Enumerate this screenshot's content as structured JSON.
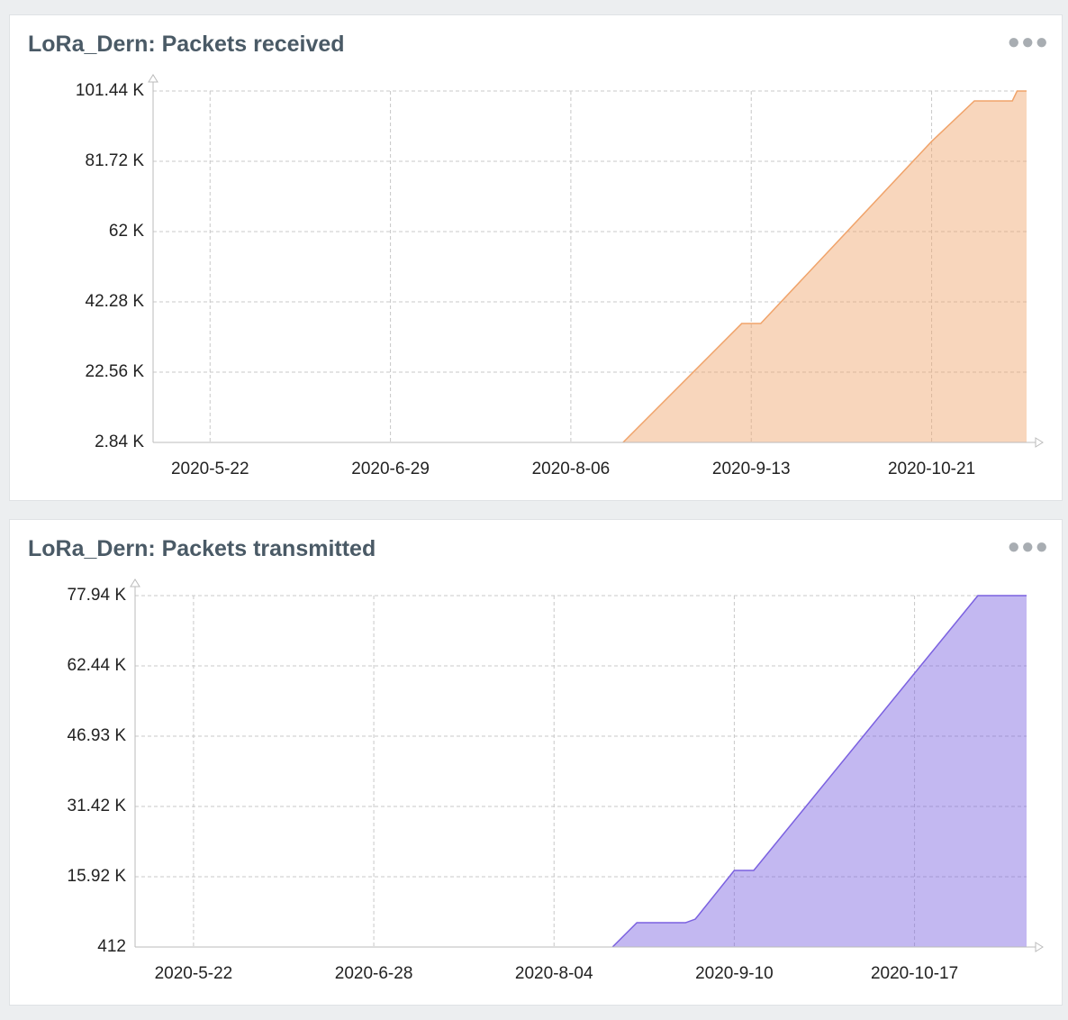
{
  "chart_data": [
    {
      "type": "area",
      "title": "LoRa_Dern: Packets received",
      "x": [
        "2020-8-17",
        "2020-9-11",
        "2020-9-15",
        "2020-10-21",
        "2020-10-30",
        "2020-11-7",
        "2020-11-8",
        "2020-11-10"
      ],
      "series": [
        {
          "color": "#f0a36a",
          "values": [
            2.84,
            36.2,
            36.2,
            87.3,
            98.66,
            98.66,
            101.44,
            101.44
          ]
        }
      ],
      "xlim": [
        "2020-5-10",
        "2020-11-10"
      ],
      "xticks": [
        "2020-5-22",
        "2020-6-29",
        "2020-8-06",
        "2020-9-13",
        "2020-10-21"
      ],
      "ylim": [
        2.84,
        101.44
      ],
      "yticks": [
        {
          "value": 2.84,
          "label": "2.84 K"
        },
        {
          "value": 22.56,
          "label": "22.56 K"
        },
        {
          "value": 42.28,
          "label": "42.28 K"
        },
        {
          "value": 62,
          "label": "62 K"
        },
        {
          "value": 81.72,
          "label": "81.72 K"
        },
        {
          "value": 101.44,
          "label": "101.44 K"
        }
      ],
      "grid": true
    },
    {
      "type": "area",
      "title": "LoRa_Dern: Packets transmitted",
      "x": [
        "2020-8-16",
        "2020-8-21",
        "2020-8-31",
        "2020-9-2",
        "2020-9-10",
        "2020-9-14",
        "2020-10-30",
        "2020-11-9"
      ],
      "series": [
        {
          "color": "#7b61e0",
          "values": [
            0.412,
            5.78,
            5.78,
            6.57,
            17.31,
            17.31,
            77.94,
            77.94
          ]
        }
      ],
      "xlim": [
        "2020-5-10",
        "2020-11-9"
      ],
      "xticks": [
        "2020-5-22",
        "2020-6-28",
        "2020-8-04",
        "2020-9-10",
        "2020-10-17"
      ],
      "ylim": [
        0.412,
        77.94
      ],
      "yticks": [
        {
          "value": 0.412,
          "label": "412"
        },
        {
          "value": 15.92,
          "label": "15.92 K"
        },
        {
          "value": 31.42,
          "label": "31.42 K"
        },
        {
          "value": 46.93,
          "label": "46.93 K"
        },
        {
          "value": 62.44,
          "label": "62.44 K"
        },
        {
          "value": 77.94,
          "label": "77.94 K"
        }
      ],
      "grid": true
    }
  ]
}
